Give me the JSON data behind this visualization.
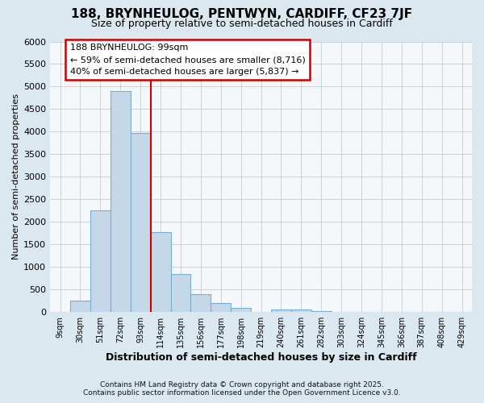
{
  "title1": "188, BRYNHEULOG, PENTWYN, CARDIFF, CF23 7JF",
  "title2": "Size of property relative to semi-detached houses in Cardiff",
  "xlabel": "Distribution of semi-detached houses by size in Cardiff",
  "ylabel": "Number of semi-detached properties",
  "categories": [
    "9sqm",
    "30sqm",
    "51sqm",
    "72sqm",
    "93sqm",
    "114sqm",
    "135sqm",
    "156sqm",
    "177sqm",
    "198sqm",
    "219sqm",
    "240sqm",
    "261sqm",
    "282sqm",
    "303sqm",
    "324sqm",
    "345sqm",
    "366sqm",
    "387sqm",
    "408sqm",
    "429sqm"
  ],
  "values": [
    5,
    250,
    2250,
    4900,
    3970,
    1780,
    840,
    390,
    200,
    100,
    0,
    65,
    50,
    20,
    10,
    5,
    3,
    2,
    1,
    1,
    0
  ],
  "bar_color": "#c5d8ea",
  "bar_edge_color": "#7aaed0",
  "vline_x": 4.5,
  "vline_color": "#cc0000",
  "annotation_title": "188 BRYNHEULOG: 99sqm",
  "annotation_line1": "← 59% of semi-detached houses are smaller (8,716)",
  "annotation_line2": "40% of semi-detached houses are larger (5,837) →",
  "annotation_box_color": "#cc0000",
  "ylim": [
    0,
    6000
  ],
  "yticks": [
    0,
    500,
    1000,
    1500,
    2000,
    2500,
    3000,
    3500,
    4000,
    4500,
    5000,
    5500,
    6000
  ],
  "footer1": "Contains HM Land Registry data © Crown copyright and database right 2025.",
  "footer2": "Contains public sector information licensed under the Open Government Licence v3.0.",
  "bg_color": "#dce8f0",
  "plot_bg_color": "#f5f8fb"
}
